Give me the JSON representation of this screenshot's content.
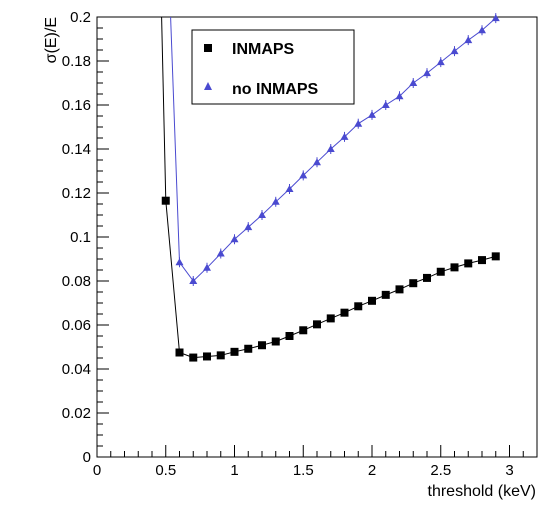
{
  "chart_data": {
    "type": "line",
    "title": "",
    "xlabel": "threshold (keV)",
    "ylabel": "σ(E)/E",
    "xlim": [
      0,
      3.2
    ],
    "ylim": [
      0,
      0.2
    ],
    "xticks": [
      0,
      0.5,
      1,
      1.5,
      2,
      2.5,
      3
    ],
    "xtick_labels": [
      "0",
      "0.5",
      "1",
      "1.5",
      "2",
      "2.5",
      "3"
    ],
    "yticks": [
      0,
      0.02,
      0.04,
      0.06,
      0.08,
      0.1,
      0.12,
      0.14,
      0.16,
      0.18,
      0.2
    ],
    "ytick_labels": [
      "0",
      "0.02",
      "0.04",
      "0.06",
      "0.08",
      "0.1",
      "0.12",
      "0.14",
      "0.16",
      "0.18",
      "0.2"
    ],
    "grid": false,
    "legend_position": "top-center",
    "series": [
      {
        "name": "INMAPS",
        "marker": "square",
        "color": "#000000",
        "x": [
          0.5,
          0.6,
          0.7,
          0.8,
          0.9,
          1.0,
          1.1,
          1.2,
          1.3,
          1.4,
          1.5,
          1.6,
          1.7,
          1.8,
          1.9,
          2.0,
          2.1,
          2.2,
          2.3,
          2.4,
          2.5,
          2.6,
          2.7,
          2.8,
          2.9
        ],
        "y": [
          0.1165,
          0.0475,
          0.0452,
          0.0457,
          0.0462,
          0.0478,
          0.0492,
          0.0508,
          0.0525,
          0.055,
          0.0576,
          0.0603,
          0.063,
          0.0656,
          0.0685,
          0.071,
          0.0737,
          0.0762,
          0.079,
          0.0814,
          0.0842,
          0.0862,
          0.088,
          0.0895,
          0.0912
        ],
        "curve_start": [
          0.47,
          0.2
        ]
      },
      {
        "name": "no INMAPS",
        "marker": "triangle",
        "color": "#4a4ad0",
        "x": [
          0.6,
          0.7,
          0.8,
          0.9,
          1.0,
          1.1,
          1.2,
          1.3,
          1.4,
          1.5,
          1.6,
          1.7,
          1.8,
          1.9,
          2.0,
          2.1,
          2.2,
          2.3,
          2.4,
          2.5,
          2.6,
          2.7,
          2.8,
          2.9
        ],
        "y": [
          0.0885,
          0.08,
          0.086,
          0.0925,
          0.099,
          0.1045,
          0.11,
          0.116,
          0.1218,
          0.128,
          0.134,
          0.14,
          0.1455,
          0.1515,
          0.1555,
          0.16,
          0.164,
          0.17,
          0.1745,
          0.1795,
          0.1845,
          0.1895,
          0.194,
          0.1995
        ],
        "curve_start": [
          0.535,
          0.2
        ]
      }
    ]
  }
}
